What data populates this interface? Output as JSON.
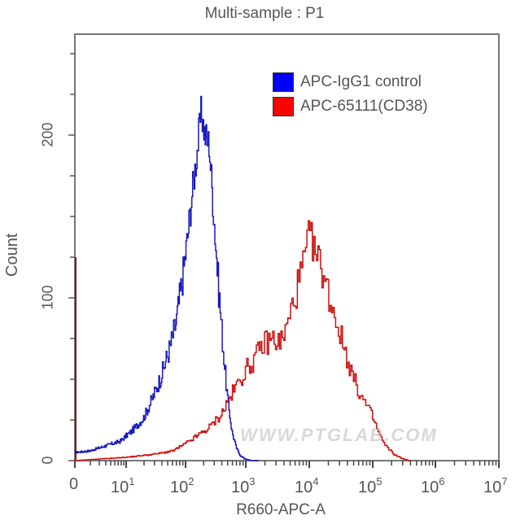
{
  "chart_data": {
    "type": "line",
    "subtype": "flow-cytometry-histogram",
    "title": "Multi-sample : P1",
    "xlabel": "R660-APC-A",
    "ylabel": "Count",
    "xscale": "biexponential-log",
    "xlim": [
      0,
      10000000
    ],
    "ylim": [
      0,
      262
    ],
    "x_ticks": [
      "0",
      "10^1",
      "10^2",
      "10^3",
      "10^4",
      "10^5",
      "10^6",
      "10^7"
    ],
    "y_ticks": [
      "0",
      "100",
      "200"
    ],
    "grid": false,
    "legend_position": "top-right-inside",
    "series": [
      {
        "name": "APC-IgG1 control",
        "color": "#0000ff",
        "x_log10": [
          0.0,
          0.3,
          0.6,
          0.9,
          1.1,
          1.3,
          1.45,
          1.6,
          1.75,
          1.85,
          1.95,
          2.05,
          2.12,
          2.2,
          2.27,
          2.33,
          2.4,
          2.48,
          2.55,
          2.62,
          2.7,
          2.78,
          2.85,
          2.92,
          3.0,
          3.1,
          3.2
        ],
        "values": [
          5,
          6,
          9,
          12,
          18,
          26,
          38,
          52,
          70,
          85,
          110,
          140,
          165,
          190,
          215,
          200,
          195,
          150,
          110,
          75,
          40,
          18,
          8,
          3,
          1,
          0,
          0
        ]
      },
      {
        "name": "APC-65111(CD38)",
        "color": "#ff0000",
        "x_log10": [
          0.0,
          0.5,
          1.0,
          1.5,
          1.8,
          2.0,
          2.2,
          2.4,
          2.6,
          2.8,
          3.0,
          3.15,
          3.3,
          3.45,
          3.55,
          3.65,
          3.75,
          3.85,
          3.95,
          4.02,
          4.1,
          4.2,
          4.3,
          4.4,
          4.5,
          4.6,
          4.7,
          4.8,
          4.9,
          5.0,
          5.1,
          5.2,
          5.35,
          5.5,
          5.6
        ],
        "values": [
          0,
          1,
          2,
          4,
          6,
          10,
          15,
          20,
          28,
          42,
          55,
          62,
          72,
          75,
          72,
          80,
          95,
          110,
          125,
          140,
          128,
          120,
          105,
          92,
          78,
          65,
          52,
          42,
          35,
          28,
          18,
          10,
          4,
          1,
          0
        ]
      }
    ],
    "annotations": [
      "WWW.PTGLAB.COM"
    ]
  },
  "title": "Multi-sample : P1",
  "axes": {
    "xlabel": "R660-APC-A",
    "ylabel": "Count",
    "x_ticks": [
      {
        "base": "0",
        "exp": ""
      },
      {
        "base": "10",
        "exp": "1"
      },
      {
        "base": "10",
        "exp": "2"
      },
      {
        "base": "10",
        "exp": "3"
      },
      {
        "base": "10",
        "exp": "4"
      },
      {
        "base": "10",
        "exp": "5"
      },
      {
        "base": "10",
        "exp": "6"
      },
      {
        "base": "10",
        "exp": "7"
      }
    ],
    "y_ticks": [
      "0",
      "100",
      "200"
    ]
  },
  "legend": {
    "items": [
      {
        "label": "APC-IgG1 control",
        "color": "#0000ff"
      },
      {
        "label": "APC-65111(CD38)",
        "color": "#ff0000"
      }
    ]
  },
  "watermark": "WWW.PTGLAB.COM"
}
